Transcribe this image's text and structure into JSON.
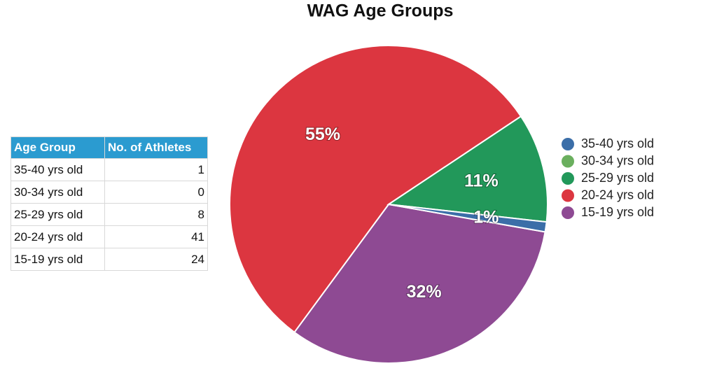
{
  "chart_data": {
    "type": "pie",
    "title": "WAG Age Groups",
    "categories": [
      "35-40 yrs old",
      "30-34 yrs old",
      "25-29 yrs old",
      "20-24 yrs old",
      "15-19 yrs old"
    ],
    "values": [
      1,
      0,
      11,
      55,
      32
    ],
    "value_labels": [
      "1%",
      null,
      "11%",
      "55%",
      "32%"
    ],
    "colors": [
      "#3b6ea8",
      "#6aaf5e",
      "#22985a",
      "#dc3640",
      "#8e4a93"
    ],
    "legend": "right"
  },
  "table": {
    "header": [
      "Age Group",
      "No. of Athletes"
    ],
    "rows": [
      [
        "35-40 yrs old",
        1
      ],
      [
        "30-34 yrs old",
        0
      ],
      [
        "25-29 yrs old",
        8
      ],
      [
        "20-24 yrs old",
        41
      ],
      [
        "15-19 yrs old",
        24
      ]
    ]
  }
}
